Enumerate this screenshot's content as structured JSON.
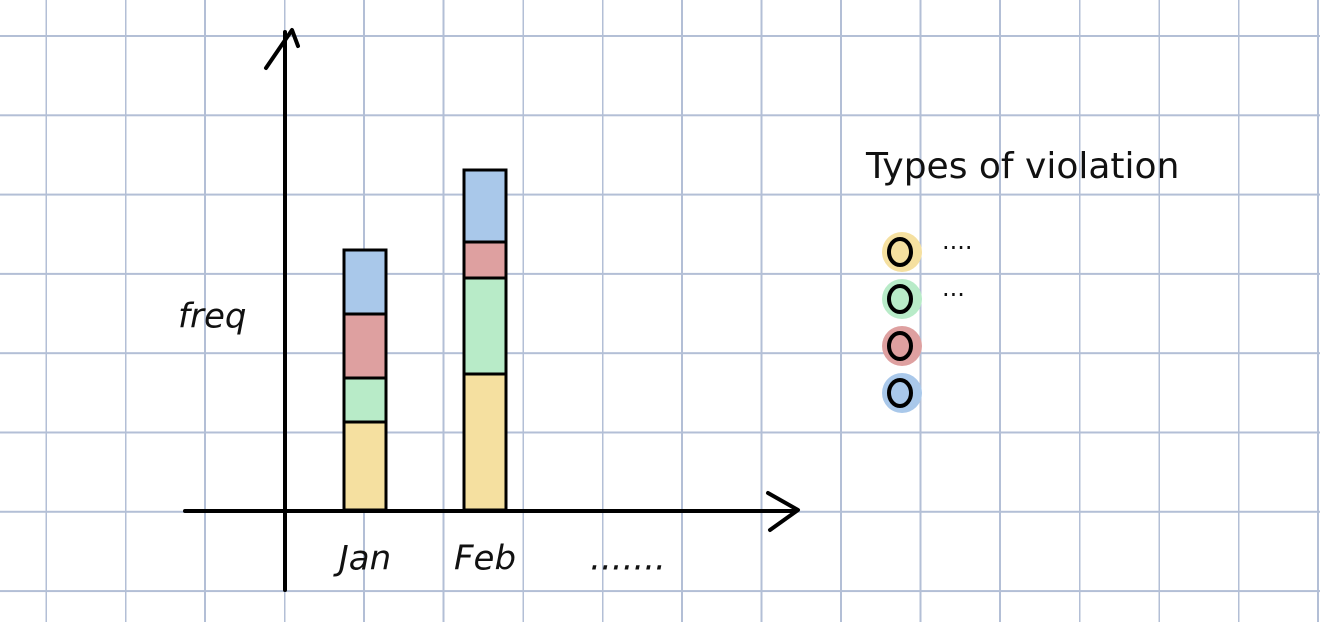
{
  "chart_data": {
    "type": "bar",
    "stacked": true,
    "title": "Types of violation",
    "y_label": "freq",
    "categories": [
      "Jan",
      "Feb",
      "......."
    ],
    "ylim": [
      0,
      6
    ],
    "series": [
      {
        "name": "....",
        "color": "#f5e0a0",
        "values": [
          1.1,
          1.7,
          null
        ]
      },
      {
        "name": "...",
        "color": "#b8ebc8",
        "values": [
          0.55,
          1.2,
          null
        ]
      },
      {
        "color": "#dea0a0",
        "values": [
          0.8,
          0.45,
          null
        ]
      },
      {
        "color": "#a9c8ea",
        "values": [
          0.8,
          0.9,
          null
        ]
      }
    ]
  }
}
